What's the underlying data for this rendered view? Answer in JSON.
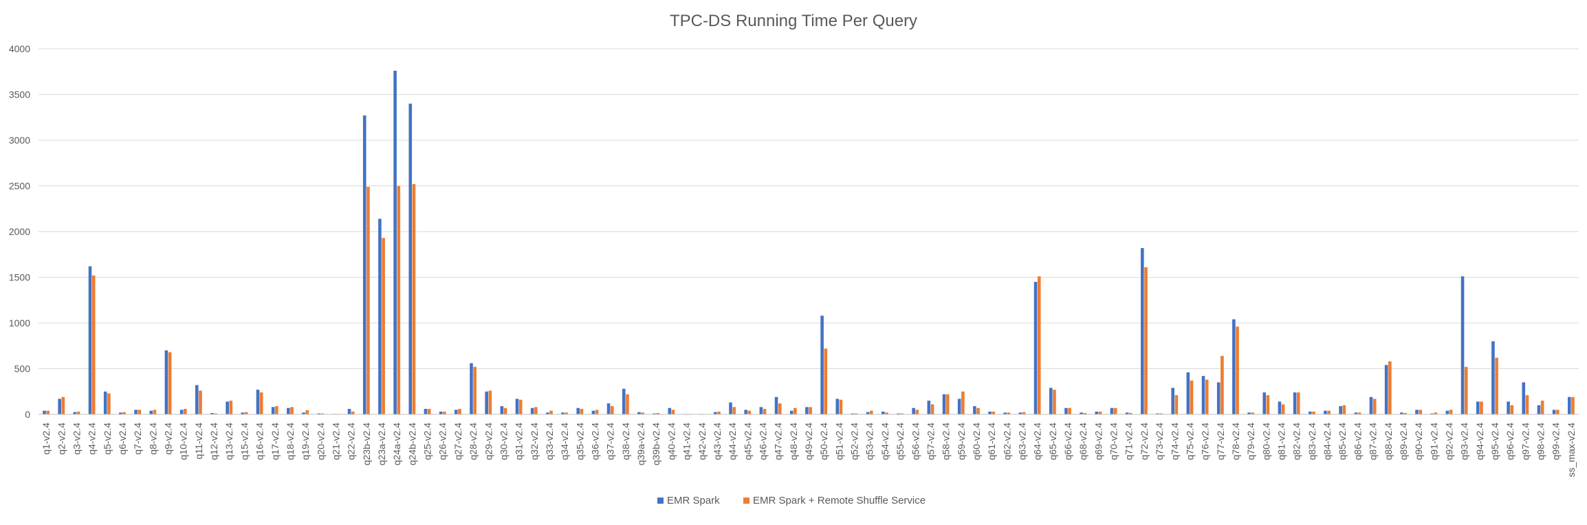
{
  "chart_data": {
    "type": "bar",
    "title": "TPC-DS Running Time Per Query",
    "xlabel": "",
    "ylabel": "",
    "ylim": [
      0,
      4000
    ],
    "yticks": [
      0,
      500,
      1000,
      1500,
      2000,
      2500,
      3000,
      3500,
      4000
    ],
    "grid": true,
    "legend_position": "bottom",
    "categories": [
      "q1-v2.4",
      "q2-v2.4",
      "q3-v2.4",
      "q4-v2.4",
      "q5-v2.4",
      "q6-v2.4",
      "q7-v2.4",
      "q8-v2.4",
      "q9-v2.4",
      "q10-v2.4",
      "q11-v2.4",
      "q12-v2.4",
      "q13-v2.4",
      "q15-v2.4",
      "q16-v2.4",
      "q17-v2.4",
      "q18-v2.4",
      "q19-v2.4",
      "q20-v2.4",
      "q21-v2.4",
      "q22-v2.4",
      "q23b-v2.4",
      "q23a-v2.4",
      "q24a-v2.4",
      "q24b-v2.4",
      "q25-v2.4",
      "q26-v2.4",
      "q27-v2.4",
      "q28-v2.4",
      "q29-v2.4",
      "q30-v2.4",
      "q31-v2.4",
      "q32-v2.4",
      "q33-v2.4",
      "q34-v2.4",
      "q35-v2.4",
      "q36-v2.4",
      "q37-v2.4",
      "q38-v2.4",
      "q39a-v2.4",
      "q39b-v2.4",
      "q40-v2.4",
      "q41-v2.4",
      "q42-v2.4",
      "q43-v2.4",
      "q44-v2.4",
      "q45-v2.4",
      "q46-v2.4",
      "q47-v2.4",
      "q48-v2.4",
      "q49-v2.4",
      "q50-v2.4",
      "q51-v2.4",
      "q52-v2.4",
      "q53-v2.4",
      "q54-v2.4",
      "q55-v2.4",
      "q56-v2.4",
      "q57-v2.4",
      "q58-v2.4",
      "q59-v2.4",
      "q60-v2.4",
      "q61-v2.4",
      "q62-v2.4",
      "q63-v2.4",
      "q64-v2.4",
      "q65-v2.4",
      "q66-v2.4",
      "q68-v2.4",
      "q69-v2.4",
      "q70-v2.4",
      "q71-v2.4",
      "q72-v2.4",
      "q73-v2.4",
      "q74-v2.4",
      "q75-v2.4",
      "q76-v2.4",
      "q77-v2.4",
      "q78-v2.4",
      "q79-v2.4",
      "q80-v2.4",
      "q81-v2.4",
      "q82-v2.4",
      "q83-v2.4",
      "q84-v2.4",
      "q85-v2.4",
      "q86-v2.4",
      "q87-v2.4",
      "q88-v2.4",
      "q89-v2.4",
      "q90-v2.4",
      "q91-v2.4",
      "q92-v2.4",
      "q93-v2.4",
      "q94-v2.4",
      "q95-v2.4",
      "q96-v2.4",
      "q97-v2.4",
      "q98-v2.4",
      "q99-v2.4",
      "ss_max-v2.4"
    ],
    "series": [
      {
        "name": "EMR Spark",
        "color": "#4472C4",
        "values": [
          40,
          170,
          25,
          1620,
          250,
          20,
          50,
          40,
          700,
          50,
          320,
          15,
          140,
          20,
          270,
          80,
          70,
          20,
          10,
          5,
          60,
          3270,
          2140,
          3760,
          3400,
          60,
          30,
          50,
          560,
          250,
          90,
          170,
          70,
          20,
          20,
          70,
          40,
          120,
          280,
          25,
          10,
          70,
          5,
          5,
          25,
          130,
          50,
          80,
          190,
          40,
          80,
          1080,
          170,
          10,
          25,
          30,
          10,
          70,
          150,
          220,
          170,
          90,
          30,
          20,
          20,
          1450,
          290,
          70,
          20,
          30,
          70,
          20,
          1820,
          10,
          290,
          460,
          420,
          350,
          1040,
          20,
          240,
          140,
          240,
          30,
          40,
          90,
          20,
          190,
          540,
          20,
          50,
          10,
          40,
          1510,
          140,
          800,
          140,
          350,
          100,
          50,
          190
        ]
      },
      {
        "name": "EMR Spark + Remote Shuffle Service",
        "color": "#ED7D31",
        "values": [
          40,
          190,
          30,
          1520,
          230,
          25,
          50,
          50,
          680,
          60,
          260,
          10,
          150,
          25,
          240,
          90,
          80,
          45,
          10,
          5,
          30,
          2490,
          1930,
          2500,
          2520,
          60,
          30,
          60,
          520,
          260,
          70,
          160,
          80,
          40,
          20,
          60,
          50,
          90,
          220,
          20,
          15,
          50,
          5,
          5,
          30,
          80,
          40,
          60,
          120,
          70,
          80,
          720,
          160,
          10,
          40,
          20,
          10,
          50,
          110,
          220,
          250,
          70,
          30,
          20,
          25,
          1510,
          270,
          70,
          15,
          30,
          70,
          15,
          1610,
          10,
          210,
          370,
          380,
          640,
          960,
          20,
          210,
          110,
          240,
          30,
          40,
          100,
          20,
          170,
          580,
          15,
          50,
          20,
          50,
          520,
          140,
          620,
          100,
          210,
          150,
          50,
          190
        ]
      }
    ]
  }
}
